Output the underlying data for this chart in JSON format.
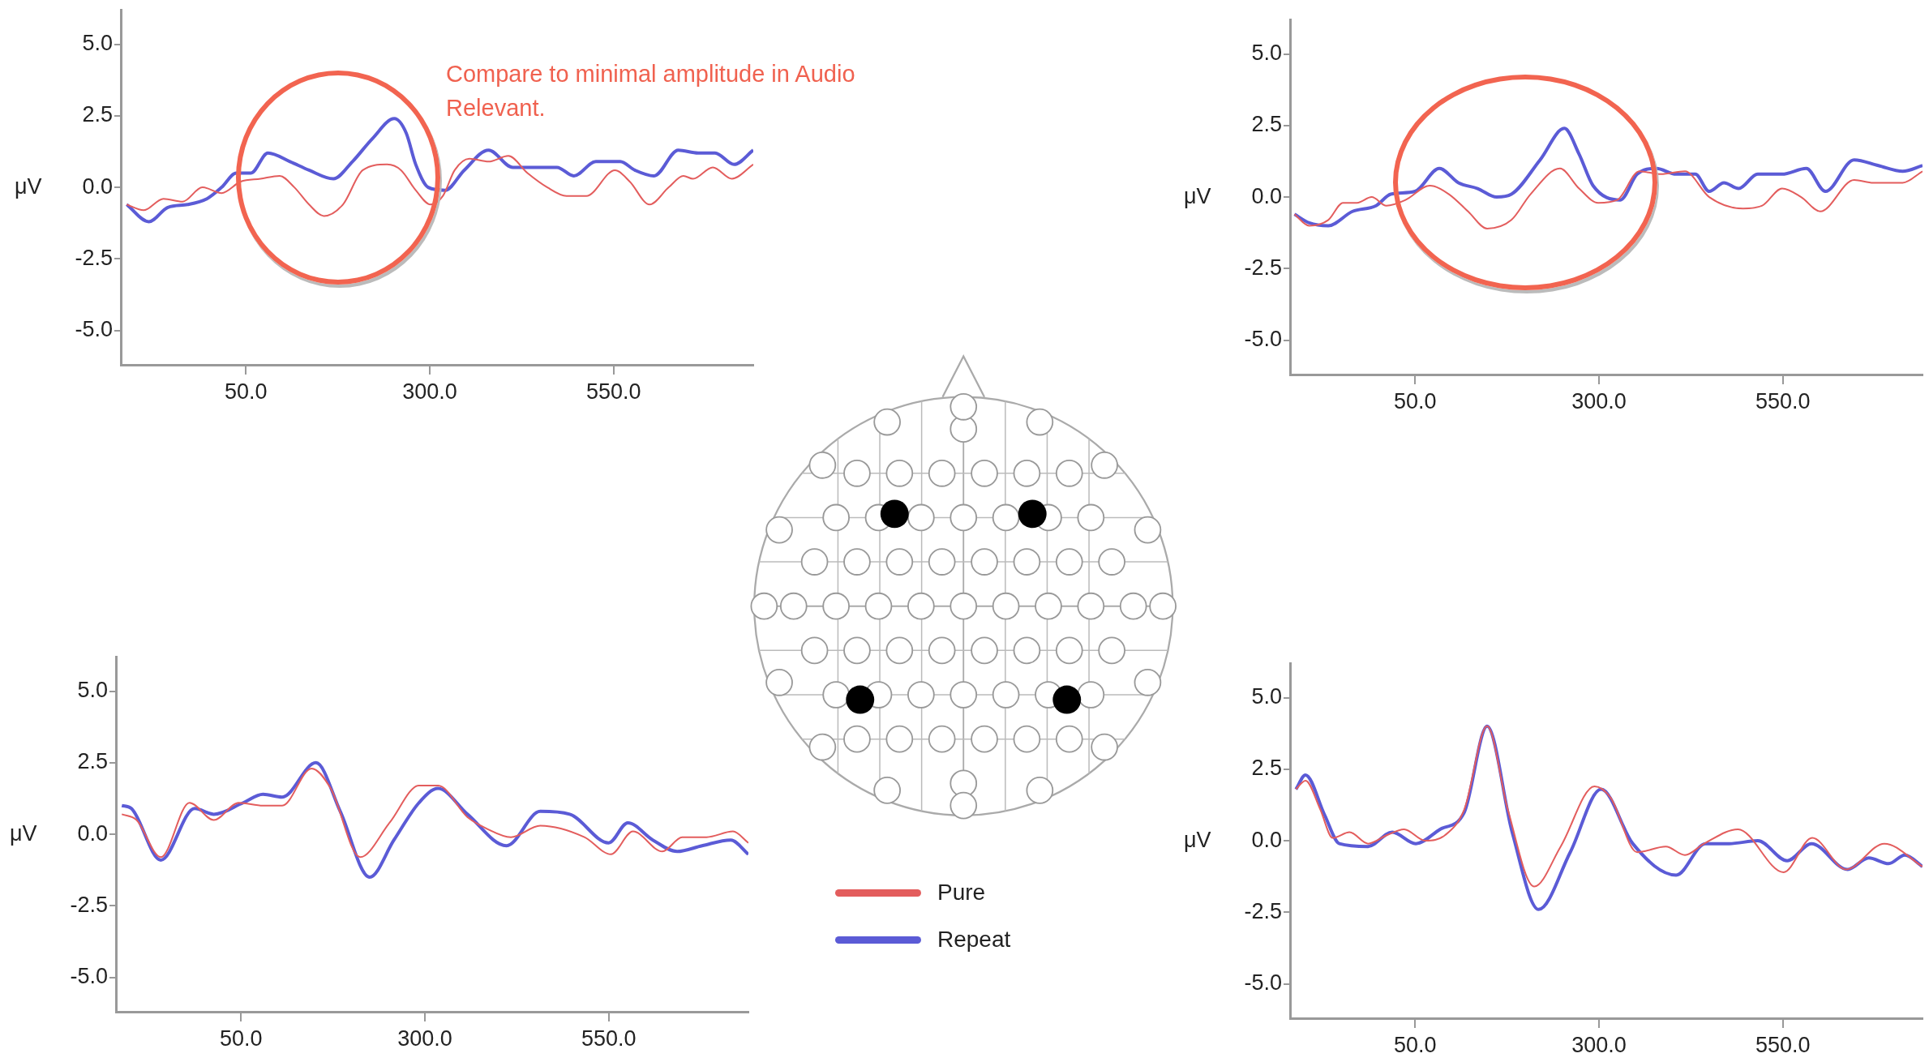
{
  "chart_data": [
    {
      "type": "line",
      "ylabel": "μV",
      "xlim": [
        -120,
        740
      ],
      "ylim": [
        -6.2,
        6.2
      ],
      "xticks": [
        {
          "value": 50,
          "label": "50.0"
        },
        {
          "value": 300,
          "label": "300.0"
        },
        {
          "value": 550,
          "label": "550.0"
        }
      ],
      "yticks": [
        {
          "value": 5,
          "label": "5.0"
        },
        {
          "value": 2.5,
          "label": "2.5"
        },
        {
          "value": 0,
          "label": "0.0"
        },
        {
          "value": -2.5,
          "label": "-2.5"
        },
        {
          "value": -5,
          "label": "-5.0"
        }
      ],
      "grid": false,
      "legend": false,
      "annotations": [
        "Compare to minimal amplitude in Audio Relevant."
      ],
      "series": [
        {
          "color": "#e35d5d",
          "x": [
            -112,
            -89,
            -62,
            -36,
            -9,
            17,
            43,
            70,
            96,
            116,
            136,
            156,
            182,
            209,
            242,
            261,
            281,
            301,
            318,
            334,
            354,
            380,
            407,
            433,
            460,
            486,
            513,
            552,
            572,
            599,
            625,
            645,
            658,
            685,
            711,
            740
          ],
          "values": [
            -0.6,
            -0.8,
            -0.4,
            -0.5,
            0.0,
            -0.2,
            0.2,
            0.3,
            0.4,
            0.0,
            -0.6,
            -1.0,
            -0.6,
            0.6,
            0.8,
            0.6,
            -0.1,
            -0.6,
            -0.3,
            0.6,
            1.0,
            0.9,
            1.1,
            0.5,
            0.0,
            -0.3,
            -0.3,
            0.6,
            0.2,
            -0.6,
            0.0,
            0.4,
            0.3,
            0.7,
            0.3,
            0.8
          ]
        },
        {
          "color": "#5b5bd6",
          "x": [
            -112,
            -82,
            -56,
            -29,
            -3,
            17,
            37,
            57,
            80,
            110,
            136,
            169,
            195,
            222,
            252,
            268,
            281,
            298,
            321,
            347,
            380,
            413,
            446,
            473,
            496,
            526,
            559,
            579,
            605,
            638,
            665,
            688,
            714,
            740
          ],
          "values": [
            -0.6,
            -1.2,
            -0.7,
            -0.6,
            -0.4,
            0.0,
            0.5,
            0.5,
            1.2,
            0.9,
            0.6,
            0.3,
            0.9,
            1.7,
            2.4,
            1.9,
            0.8,
            0.0,
            -0.1,
            0.6,
            1.3,
            0.7,
            0.7,
            0.7,
            0.4,
            0.9,
            0.9,
            0.6,
            0.4,
            1.3,
            1.2,
            1.2,
            0.8,
            1.3
          ]
        }
      ]
    },
    {
      "type": "line",
      "ylabel": "μV",
      "xlim": [
        -120,
        740
      ],
      "ylim": [
        -6.2,
        6.2
      ],
      "xticks": [
        {
          "value": 50,
          "label": "50.0"
        },
        {
          "value": 300,
          "label": "300.0"
        },
        {
          "value": 550,
          "label": "550.0"
        }
      ],
      "yticks": [
        {
          "value": 5,
          "label": "5.0"
        },
        {
          "value": 2.5,
          "label": "2.5"
        },
        {
          "value": 0,
          "label": "0.0"
        },
        {
          "value": -2.5,
          "label": "-2.5"
        },
        {
          "value": -5,
          "label": "-5.0"
        }
      ],
      "grid": false,
      "legend": false,
      "series": [
        {
          "color": "#e35d5d",
          "x": [
            -114,
            -94,
            -68,
            -48,
            -29,
            -9,
            11,
            37,
            70,
            96,
            122,
            148,
            181,
            207,
            247,
            273,
            299,
            325,
            355,
            384,
            417,
            450,
            496,
            522,
            549,
            575,
            601,
            647,
            673,
            713,
            740
          ],
          "values": [
            -0.6,
            -1.0,
            -0.8,
            -0.2,
            -0.2,
            0.0,
            -0.3,
            -0.1,
            0.4,
            0.1,
            -0.5,
            -1.1,
            -0.8,
            0.1,
            1.0,
            0.3,
            -0.2,
            -0.1,
            0.9,
            0.8,
            0.9,
            0.0,
            -0.4,
            -0.3,
            0.3,
            0.0,
            -0.5,
            0.6,
            0.5,
            0.5,
            0.9
          ]
        },
        {
          "color": "#5b5bd6",
          "x": [
            -114,
            -94,
            -68,
            -35,
            -3,
            17,
            50,
            83,
            109,
            135,
            161,
            181,
            220,
            253,
            273,
            292,
            329,
            352,
            378,
            405,
            431,
            450,
            470,
            490,
            516,
            549,
            582,
            608,
            647,
            680,
            713,
            740
          ],
          "values": [
            -0.6,
            -0.9,
            -1.0,
            -0.5,
            -0.3,
            0.1,
            0.2,
            1.0,
            0.5,
            0.3,
            0.0,
            0.1,
            1.3,
            2.4,
            1.5,
            0.4,
            -0.1,
            0.8,
            1.0,
            0.8,
            0.8,
            0.2,
            0.5,
            0.3,
            0.8,
            0.8,
            1.0,
            0.2,
            1.3,
            1.1,
            0.9,
            1.1
          ]
        }
      ]
    },
    {
      "type": "line",
      "ylabel": "μV",
      "xlim": [
        -120,
        740
      ],
      "ylim": [
        -6.2,
        6.2
      ],
      "xticks": [
        {
          "value": 50,
          "label": "50.0"
        },
        {
          "value": 300,
          "label": "300.0"
        },
        {
          "value": 550,
          "label": "550.0"
        }
      ],
      "yticks": [
        {
          "value": 5,
          "label": "5.0"
        },
        {
          "value": 2.5,
          "label": "2.5"
        },
        {
          "value": 0,
          "label": "0.0"
        },
        {
          "value": -2.5,
          "label": "-2.5"
        },
        {
          "value": -5,
          "label": "-5.0"
        }
      ],
      "grid": false,
      "legend": "right",
      "series": [
        {
          "name": "Pure",
          "color": "#e35d5d",
          "x": [
            -112,
            -92,
            -59,
            -20,
            13,
            47,
            80,
            106,
            146,
            172,
            212,
            252,
            292,
            318,
            358,
            384,
            417,
            457,
            517,
            553,
            583,
            623,
            650,
            683,
            719,
            740
          ],
          "values": [
            0.7,
            0.5,
            -0.8,
            1.1,
            0.5,
            1.1,
            1.0,
            1.0,
            2.3,
            1.6,
            -0.8,
            0.4,
            1.7,
            1.7,
            0.6,
            0.2,
            -0.1,
            0.3,
            -0.1,
            -0.7,
            0.1,
            -0.6,
            -0.1,
            -0.1,
            0.1,
            -0.3
          ]
        },
        {
          "name": "Repeat",
          "color": "#5b5bd6",
          "x": [
            -112,
            -99,
            -59,
            -13,
            13,
            53,
            80,
            106,
            152,
            185,
            225,
            258,
            292,
            318,
            358,
            411,
            457,
            497,
            550,
            576,
            610,
            643,
            677,
            716,
            740
          ],
          "values": [
            1.0,
            0.9,
            -0.9,
            0.9,
            0.7,
            1.1,
            1.4,
            1.3,
            2.5,
            0.8,
            -1.5,
            -0.2,
            1.1,
            1.6,
            0.7,
            -0.4,
            0.8,
            0.7,
            -0.3,
            0.4,
            -0.2,
            -0.6,
            -0.4,
            -0.2,
            -0.7
          ]
        }
      ]
    },
    {
      "type": "line",
      "ylabel": "μV",
      "xlim": [
        -120,
        740
      ],
      "ylim": [
        -6.2,
        6.2
      ],
      "xticks": [
        {
          "value": 50,
          "label": "50.0"
        },
        {
          "value": 300,
          "label": "300.0"
        },
        {
          "value": 550,
          "label": "550.0"
        }
      ],
      "yticks": [
        {
          "value": 5,
          "label": "5.0"
        },
        {
          "value": 2.5,
          "label": "2.5"
        },
        {
          "value": 0,
          "label": "0.0"
        },
        {
          "value": -2.5,
          "label": "-2.5"
        },
        {
          "value": -5,
          "label": "-5.0"
        }
      ],
      "grid": false,
      "legend": false,
      "series": [
        {
          "color": "#e35d5d",
          "x": [
            -112,
            -99,
            -79,
            -62,
            -39,
            -14,
            12,
            35,
            64,
            91,
            117,
            148,
            176,
            212,
            248,
            294,
            316,
            352,
            391,
            417,
            443,
            489,
            551,
            590,
            636,
            688,
            740
          ],
          "values": [
            1.8,
            2.1,
            1.1,
            0.1,
            0.3,
            -0.1,
            0.2,
            0.4,
            0.0,
            0.2,
            1.1,
            4.0,
            1.1,
            -1.6,
            -0.2,
            1.9,
            1.5,
            -0.4,
            -0.2,
            -0.5,
            -0.1,
            0.4,
            -1.1,
            0.1,
            -1.0,
            -0.1,
            -0.9
          ]
        },
        {
          "color": "#5b5bd6",
          "x": [
            -112,
            -99,
            -73,
            -53,
            -14,
            19,
            51,
            84,
            117,
            148,
            182,
            218,
            261,
            303,
            346,
            405,
            445,
            477,
            516,
            556,
            589,
            638,
            667,
            694,
            716,
            740
          ],
          "values": [
            1.8,
            2.3,
            0.9,
            -0.1,
            -0.2,
            0.3,
            -0.1,
            0.4,
            1.0,
            4.0,
            0.3,
            -2.4,
            -0.4,
            1.8,
            -0.1,
            -1.2,
            -0.1,
            -0.1,
            0.0,
            -0.7,
            -0.1,
            -1.0,
            -0.6,
            -0.8,
            -0.5,
            -0.9
          ]
        }
      ]
    }
  ]
}
